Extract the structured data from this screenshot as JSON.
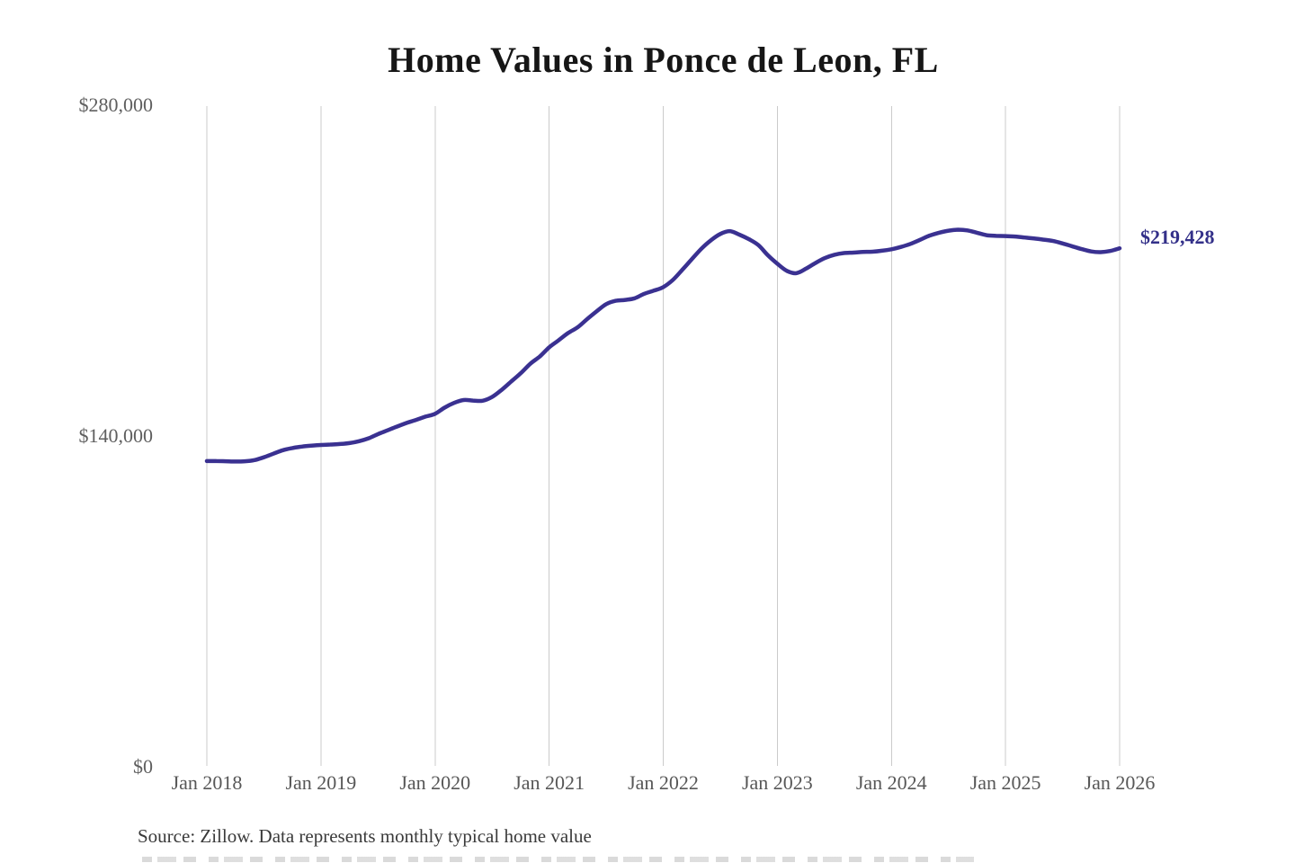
{
  "page": {
    "title": "Home Values in Ponce de Leon, FL",
    "latest_value_label": "$219,428",
    "source_note": "Source: Zillow. Data represents monthly typical home value"
  },
  "colors": {
    "line": "#3a3191",
    "latest_value_text": "#333089",
    "grid": "#cbcbcb",
    "title_text": "#161616",
    "axis_text": "#5f5f5f",
    "source_text": "#3a3a3a",
    "background": "#ffffff"
  },
  "chart_data": {
    "type": "line",
    "title": "Home Values in Ponce de Leon, FL",
    "xlabel": "",
    "ylabel": "",
    "x_interval": "monthly",
    "x_start": "Jan 2018",
    "x_end": "Jan 2026",
    "x_tick_labels": [
      "Jan 2018",
      "Jan 2019",
      "Jan 2020",
      "Jan 2021",
      "Jan 2022",
      "Jan 2023",
      "Jan 2024",
      "Jan 2025",
      "Jan 2026"
    ],
    "y_ticks": [
      {
        "label": "$0",
        "value": 0
      },
      {
        "label": "$140,000",
        "value": 140000
      },
      {
        "label": "$280,000",
        "value": 280000
      }
    ],
    "ylim": [
      0,
      280000
    ],
    "grid": "vertical-only",
    "legend": "none",
    "annotation": {
      "text": "$219,428",
      "position": "end-of-line"
    },
    "final_value": 219428,
    "series": [
      {
        "name": "Typical home value (USD)",
        "values": [
          129400,
          129400,
          129300,
          129200,
          129300,
          129800,
          131000,
          132500,
          134000,
          134900,
          135500,
          135900,
          136200,
          136400,
          136600,
          137000,
          137800,
          139000,
          140800,
          142400,
          144000,
          145500,
          146800,
          148200,
          149400,
          152000,
          154000,
          155200,
          155000,
          154900,
          156500,
          159500,
          163000,
          166500,
          170500,
          173600,
          177500,
          180500,
          183600,
          186000,
          189500,
          192800,
          195800,
          197200,
          197600,
          198300,
          200200,
          201500,
          203000,
          206000,
          210300,
          214800,
          219200,
          222800,
          225500,
          226700,
          225200,
          223300,
          220800,
          216500,
          212900,
          209900,
          208900,
          210800,
          213200,
          215300,
          216700,
          217400,
          217600,
          217900,
          218000,
          218400,
          219000,
          220000,
          221300,
          223000,
          224800,
          226000,
          226900,
          227300,
          227000,
          226000,
          225000,
          224700,
          224600,
          224400,
          224000,
          223600,
          223100,
          222500,
          221500,
          220300,
          219100,
          218100,
          217800,
          218300,
          219428
        ]
      }
    ]
  }
}
